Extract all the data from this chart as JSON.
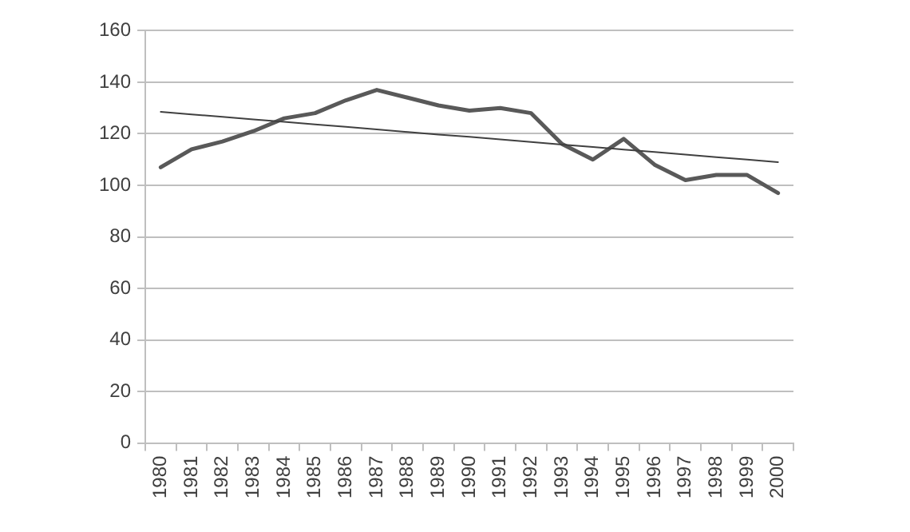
{
  "chart_data": {
    "type": "line",
    "categories": [
      "1980",
      "1981",
      "1982",
      "1983",
      "1984",
      "1985",
      "1986",
      "1987",
      "1988",
      "1989",
      "1990",
      "1991",
      "1992",
      "1993",
      "1994",
      "1995",
      "1996",
      "1997",
      "1998",
      "1999",
      "2000"
    ],
    "series": [
      {
        "color": "#595959",
        "values": [
          107,
          114,
          117,
          121,
          126,
          128,
          133,
          137,
          134,
          131,
          129,
          130,
          128,
          116,
          110,
          118,
          108,
          102,
          104,
          104,
          97
        ]
      },
      {
        "color": "#404040",
        "values": [
          128.5,
          127.5,
          126.6,
          125.6,
          124.6,
          123.6,
          122.7,
          121.7,
          120.7,
          119.7,
          118.8,
          117.8,
          116.8,
          115.8,
          114.9,
          113.9,
          112.9,
          111.9,
          110.9,
          110.0,
          109.0
        ]
      }
    ],
    "ylim": [
      0,
      160
    ],
    "yticks": [
      0,
      20,
      40,
      60,
      80,
      100,
      120,
      140,
      160
    ],
    "grid": "y",
    "legend": false,
    "marker": "none",
    "line_style": "solid"
  }
}
